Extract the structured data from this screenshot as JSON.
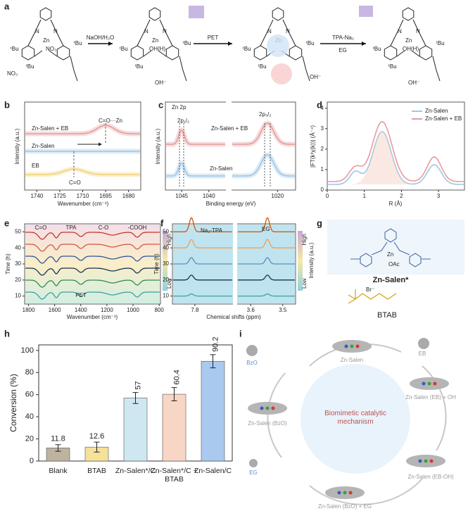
{
  "figure": {
    "a": {
      "label": "a",
      "reagents": [
        "NaOH/H₂O",
        "PET",
        "TPA-Na₂",
        "EG"
      ],
      "atoms": [
        "ᵗBu",
        "Zn",
        "NO₃",
        "OH(H)",
        "OH⁻",
        "N",
        "O"
      ]
    },
    "b": {
      "label": "b",
      "xlabel": "Wavenumber (cm⁻¹)",
      "ylabel": "Intensity (a.u.)",
      "xlim": [
        1748,
        1672
      ],
      "xticks": [
        1740,
        1725,
        1710,
        1695,
        1680
      ],
      "texts": [
        "Zn-Salen + EB",
        "C=O···Zn",
        "Zn-Salen",
        "EB",
        "C=O"
      ]
    },
    "c": {
      "label": "c",
      "xlabel": "Binding energy (eV)",
      "ylabel": "Intensity (a.u.)",
      "xlim": [
        1048,
        1037
      ],
      "xticks": [
        1045,
        1040
      ],
      "x2lim": [
        1030,
        1016
      ],
      "x2ticks": [
        1020
      ],
      "texts": [
        "Zn 2p",
        "2p₁/₂",
        "2p₃/₂",
        "Zn-Salen + EB",
        "Zn-Salen"
      ]
    },
    "d": {
      "label": "d",
      "xlabel": "R (Å)",
      "ylabel": "|FT(k³χ(k))| (Å⁻⁴)",
      "xlim": [
        0,
        3.7
      ],
      "xticks": [
        0,
        1,
        2,
        3
      ],
      "ylim": [
        0,
        4.3
      ],
      "yticks": [
        0,
        1,
        2,
        3,
        4
      ],
      "legend": [
        "Zn-Salen",
        "Zn-Salen + EB"
      ]
    },
    "e": {
      "label": "e",
      "xlabel": "Wavenumber (cm⁻¹)",
      "ylabel": "Time (h)",
      "xlim": [
        1830,
        790
      ],
      "xticks": [
        1800,
        1600,
        1400,
        1200,
        1000,
        800
      ],
      "ylim": [
        5,
        55
      ],
      "yticks": [
        10,
        20,
        30,
        40,
        50
      ],
      "texts": [
        "C=O",
        "TPA",
        "C-O",
        "-COOH",
        "PET"
      ],
      "colorbar": [
        "High",
        "Low",
        "Intensity (a.u.)"
      ]
    },
    "f": {
      "label": "f",
      "xlabel": "Chemical shifts (ppm)",
      "ylabel": "Time (h)",
      "xlim": [
        7.95,
        7.55
      ],
      "xticks": [
        7.8
      ],
      "x2lim": [
        3.64,
        3.46
      ],
      "x2ticks": [
        3.6,
        3.5
      ],
      "ylim": [
        5,
        55
      ],
      "yticks": [
        10,
        20,
        30,
        40,
        50
      ],
      "texts": [
        "Na₂-TPA",
        "EG"
      ],
      "colorbar": [
        "High",
        "Low",
        "Intensity (a.u.)"
      ]
    },
    "g": {
      "label": "g",
      "texts": [
        "Zn-Salen*",
        "BTAB",
        "Br⁻",
        "OAc",
        "Zn"
      ]
    },
    "h": {
      "label": "h"
    },
    "i": {
      "label": "i",
      "center": "Biomimetic catalytic mechanism",
      "states": [
        "Zn-Salen",
        "EB",
        "Zn-Salen (EB) + OH",
        "Zn-Salen (EB-OH)",
        "Zn-Salen (BzO) + EG",
        "Zn-Salen (BzO)",
        "BzO",
        "EG"
      ]
    }
  },
  "chart_data": {
    "type": "bar",
    "ylabel": "Conversion (%)",
    "categories": [
      "Blank",
      "BTAB",
      "Zn-Salen*/C",
      "Zn-Salen*/C + BTAB",
      "Zn-Salen/C"
    ],
    "values": [
      11.8,
      12.6,
      57,
      60.4,
      90.2
    ],
    "errors": [
      3,
      4.5,
      5,
      6,
      6
    ],
    "colors": [
      "#bdb39f",
      "#f4e19a",
      "#cfe7f0",
      "#f8d6c6",
      "#a9c9ef"
    ],
    "ylim": [
      0,
      105
    ],
    "yticks": [
      0,
      20,
      40,
      60,
      80,
      100
    ]
  }
}
